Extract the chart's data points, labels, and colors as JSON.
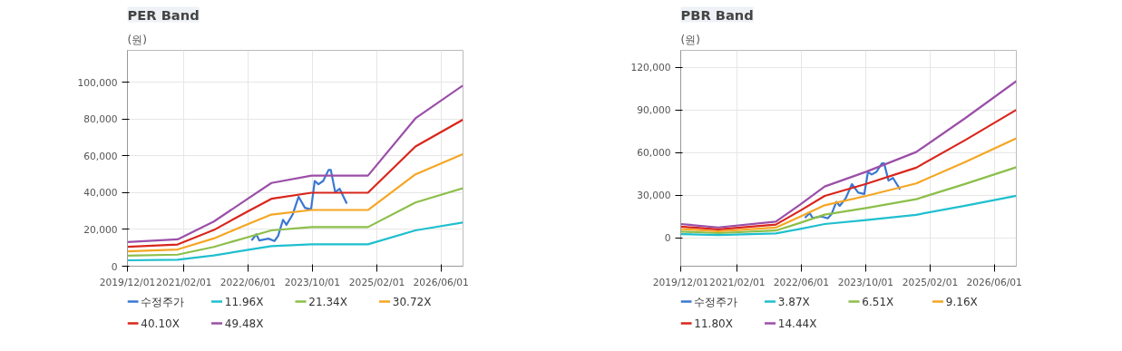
{
  "chart_data": [
    {
      "type": "line",
      "title": "PER Band",
      "ylabel": "(원)",
      "grid": true,
      "legend": "bottom",
      "marker": "none",
      "line_style": "solid",
      "xlim": [
        "2019-12-01",
        "2026-11-15"
      ],
      "ylim": [
        0,
        117500
      ],
      "xticks": [
        {
          "value": "2019-12-01",
          "label": "2019/12/01"
        },
        {
          "value": "2021-02-01",
          "label": "2021/02/01"
        },
        {
          "value": "2022-06-01",
          "label": "2022/06/01"
        },
        {
          "value": "2023-10-01",
          "label": "2023/10/01"
        },
        {
          "value": "2025-02-01",
          "label": "2025/02/01"
        },
        {
          "value": "2026-06-01",
          "label": "2026/06/01"
        }
      ],
      "yticks": [
        0,
        {
          "value": 20000,
          "label": "20,000"
        },
        {
          "value": 40000,
          "label": "40,000"
        },
        {
          "value": 60000,
          "label": "60,000"
        },
        {
          "value": 80000,
          "label": "80,000"
        },
        {
          "value": 100000,
          "label": "100,000"
        }
      ],
      "x": [
        "2019-12-01",
        "2020-12-15",
        "2021-09-15",
        "2022-05-25",
        "2022-11-25",
        "2023-09-25",
        "2024-11-25",
        "2025-11-20",
        "2026-11-13"
      ],
      "series": [
        {
          "name": "수정주가",
          "color": "#3a78d0",
          "x": [
            "2022-06-28",
            "2022-08-03",
            "2022-08-25",
            "2022-11-03",
            "2022-12-18",
            "2023-01-15",
            "2023-02-21",
            "2023-03-19",
            "2023-05-04",
            "2023-06-19",
            "2023-08-06",
            "2023-09-21",
            "2023-10-19",
            "2023-11-16",
            "2023-12-22",
            "2024-02-01",
            "2024-02-18",
            "2024-03-22",
            "2024-04-25",
            "2024-06-18"
          ],
          "values": [
            14000,
            17400,
            14000,
            15000,
            13700,
            16500,
            25300,
            22500,
            28000,
            37800,
            31800,
            30900,
            46400,
            44600,
            46400,
            52400,
            52400,
            40300,
            42100,
            34100
          ]
        },
        {
          "name": "11.96X",
          "color": "#1fbfcf",
          "values": [
            3200,
            3500,
            5900,
            8800,
            10900,
            11900,
            11900,
            19500,
            23800
          ]
        },
        {
          "name": "21.34X",
          "color": "#8cbf4a",
          "values": [
            5700,
            6300,
            10500,
            15700,
            19500,
            21300,
            21300,
            34700,
            42400
          ]
        },
        {
          "name": "30.72X",
          "color": "#f5a623",
          "values": [
            8100,
            9100,
            15100,
            22700,
            28100,
            30600,
            30600,
            50000,
            61000
          ]
        },
        {
          "name": "40.10X",
          "color": "#d9261c",
          "values": [
            10600,
            11800,
            19700,
            29600,
            36700,
            40000,
            40000,
            65200,
            79700
          ]
        },
        {
          "name": "49.48X",
          "color": "#9b4fa8",
          "values": [
            13100,
            14600,
            24300,
            36500,
            45300,
            49300,
            49300,
            80500,
            98300
          ]
        }
      ]
    },
    {
      "type": "line",
      "title": "PBR Band",
      "ylabel": "(원)",
      "grid": true,
      "legend": "bottom",
      "marker": "none",
      "line_style": "solid",
      "xlim": [
        "2019-12-01",
        "2026-11-15"
      ],
      "ylim": [
        -20000,
        132000
      ],
      "xticks": [
        {
          "value": "2019-12-01",
          "label": "2019/12/01"
        },
        {
          "value": "2021-02-01",
          "label": "2021/02/01"
        },
        {
          "value": "2022-06-01",
          "label": "2022/06/01"
        },
        {
          "value": "2023-10-01",
          "label": "2023/10/01"
        },
        {
          "value": "2025-02-01",
          "label": "2025/02/01"
        },
        {
          "value": "2026-06-01",
          "label": "2026/06/01"
        }
      ],
      "yticks": [
        0,
        {
          "value": 30000,
          "label": "30,000"
        },
        {
          "value": 60000,
          "label": "60,000"
        },
        {
          "value": 90000,
          "label": "90,000"
        },
        {
          "value": 120000,
          "label": "120,000"
        }
      ],
      "x": [
        "2019-12-01",
        "2020-09-10",
        "2021-11-20",
        "2022-05-25",
        "2022-11-25",
        "2023-10-05",
        "2024-10-18",
        "2025-10-22",
        "2026-11-15"
      ],
      "series": [
        {
          "name": "수정주가",
          "color": "#3a78d0",
          "x": [
            "2022-06-28",
            "2022-08-03",
            "2022-08-25",
            "2022-11-03",
            "2022-12-18",
            "2023-01-15",
            "2023-02-21",
            "2023-03-19",
            "2023-05-04",
            "2023-06-19",
            "2023-08-06",
            "2023-09-21",
            "2023-10-19",
            "2023-11-16",
            "2023-12-22",
            "2024-02-01",
            "2024-02-18",
            "2024-03-22",
            "2024-04-25",
            "2024-06-18"
          ],
          "values": [
            14000,
            17400,
            14000,
            15000,
            13700,
            16500,
            25300,
            22500,
            28000,
            37800,
            31800,
            30900,
            46400,
            44600,
            46400,
            52400,
            52400,
            40300,
            42100,
            34100
          ]
        },
        {
          "name": "3.87X",
          "color": "#1fbfcf",
          "values": [
            2600,
            2000,
            3100,
            6300,
            9700,
            12500,
            16200,
            22500,
            29600
          ]
        },
        {
          "name": "6.51X",
          "color": "#8cbf4a",
          "values": [
            4400,
            3300,
            5100,
            10600,
            16300,
            21000,
            27200,
            37900,
            49700
          ]
        },
        {
          "name": "9.16X",
          "color": "#f5a623",
          "values": [
            6200,
            4600,
            7200,
            14900,
            22900,
            29500,
            38300,
            53300,
            70000
          ]
        },
        {
          "name": "11.80X",
          "color": "#d9261c",
          "values": [
            7900,
            6000,
            9300,
            19200,
            29500,
            38000,
            49400,
            68700,
            90100
          ]
        },
        {
          "name": "14.44X",
          "color": "#9b4fa8",
          "values": [
            9700,
            7300,
            11400,
            23500,
            36100,
            46500,
            60400,
            84100,
            110300
          ]
        }
      ]
    }
  ]
}
